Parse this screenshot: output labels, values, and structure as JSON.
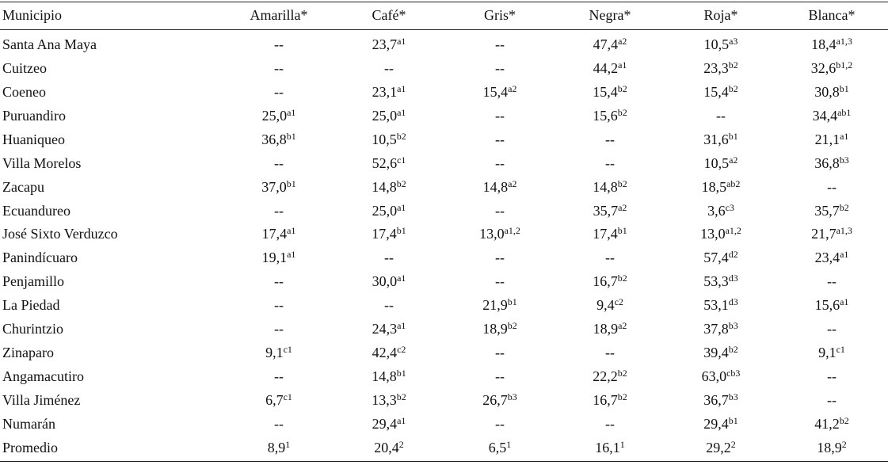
{
  "table": {
    "header": [
      "Municipio",
      "Amarilla*",
      "Café*",
      "Gris*",
      "Negra*",
      "Roja*",
      "Blanca*"
    ],
    "rows": [
      [
        "Santa Ana Maya",
        "--",
        [
          "23,7",
          "a1"
        ],
        "--",
        [
          "47,4",
          "a2"
        ],
        [
          "10,5",
          "a3"
        ],
        [
          "18,4",
          "a1,3"
        ]
      ],
      [
        "Cuitzeo",
        "--",
        "--",
        "--",
        [
          "44,2",
          "a1"
        ],
        [
          "23,3",
          "b2"
        ],
        [
          "32,6",
          "b1,2"
        ]
      ],
      [
        "Coeneo",
        "--",
        [
          "23,1",
          "a1"
        ],
        [
          "15,4",
          "a2"
        ],
        [
          "15,4",
          "b2"
        ],
        [
          "15,4",
          "b2"
        ],
        [
          "30,8",
          "b1"
        ]
      ],
      [
        "Puruandiro",
        [
          "25,0",
          "a1"
        ],
        [
          "25,0",
          "a1"
        ],
        "--",
        [
          "15,6",
          "b2"
        ],
        "--",
        [
          "34,4",
          "ab1"
        ]
      ],
      [
        "Huaniqueo",
        [
          "36,8",
          "b1"
        ],
        [
          "10,5",
          "b2"
        ],
        "--",
        "--",
        [
          "31,6",
          "b1"
        ],
        [
          "21,1",
          "a1"
        ]
      ],
      [
        "Villa Morelos",
        "--",
        [
          "52,6",
          "c1"
        ],
        "--",
        "--",
        [
          "10,5",
          "a2"
        ],
        [
          "36,8",
          "b3"
        ]
      ],
      [
        "Zacapu",
        [
          "37,0",
          "b1"
        ],
        [
          "14,8",
          "b2"
        ],
        [
          "14,8",
          "a2"
        ],
        [
          "14,8",
          "b2"
        ],
        [
          "18,5",
          "ab2"
        ],
        "--"
      ],
      [
        "Ecuandureo",
        "--",
        [
          "25,0",
          "a1"
        ],
        "--",
        [
          "35,7",
          "a2"
        ],
        [
          "3,6",
          "c3"
        ],
        [
          "35,7",
          "b2"
        ]
      ],
      [
        "José Sixto Verduzco",
        [
          "17,4",
          "a1"
        ],
        [
          "17,4",
          "b1"
        ],
        [
          "13,0",
          "a1,2"
        ],
        [
          "17,4",
          "b1"
        ],
        [
          "13,0",
          "a1,2"
        ],
        [
          "21,7",
          "a1,3"
        ]
      ],
      [
        "Panindícuaro",
        [
          "19,1",
          "a1"
        ],
        "--",
        "--",
        "--",
        [
          "57,4",
          "d2"
        ],
        [
          "23,4",
          "a1"
        ]
      ],
      [
        "Penjamillo",
        "--",
        [
          "30,0",
          "a1"
        ],
        "--",
        [
          "16,7",
          "b2"
        ],
        [
          "53,3",
          "d3"
        ],
        "--"
      ],
      [
        "La Piedad",
        "--",
        "--",
        [
          "21,9",
          "b1"
        ],
        [
          "9,4",
          "c2"
        ],
        [
          "53,1",
          "d3"
        ],
        [
          "15,6",
          "a1"
        ]
      ],
      [
        "Churintzio",
        "--",
        [
          "24,3",
          "a1"
        ],
        [
          "18,9",
          "b2"
        ],
        [
          "18,9",
          "a2"
        ],
        [
          "37,8",
          "b3"
        ],
        "--"
      ],
      [
        "Zinaparo",
        [
          "9,1",
          "c1"
        ],
        [
          "42,4",
          "c2"
        ],
        "--",
        "--",
        [
          "39,4",
          "b2"
        ],
        [
          "9,1",
          "c1"
        ]
      ],
      [
        "Angamacutiro",
        "--",
        [
          "14,8",
          "b1"
        ],
        "--",
        [
          "22,2",
          "b2"
        ],
        [
          "63,0",
          "cb3"
        ],
        "--"
      ],
      [
        "Villa Jiménez",
        [
          "6,7",
          "c1"
        ],
        [
          "13,3",
          "b2"
        ],
        [
          "26,7",
          "b3"
        ],
        [
          "16,7",
          "b2"
        ],
        [
          "36,7",
          "b3"
        ],
        "--"
      ],
      [
        "Numarán",
        "--",
        [
          "29,4",
          "a1"
        ],
        "--",
        "--",
        [
          "29,4",
          "b1"
        ],
        [
          "41,2",
          "b2"
        ]
      ],
      [
        "Promedio",
        [
          "8,9",
          "1"
        ],
        [
          "20,4",
          "2"
        ],
        [
          "6,5",
          "1"
        ],
        [
          "16,1",
          "1"
        ],
        [
          "29,2",
          "2"
        ],
        [
          "18,9",
          "2"
        ]
      ]
    ]
  }
}
